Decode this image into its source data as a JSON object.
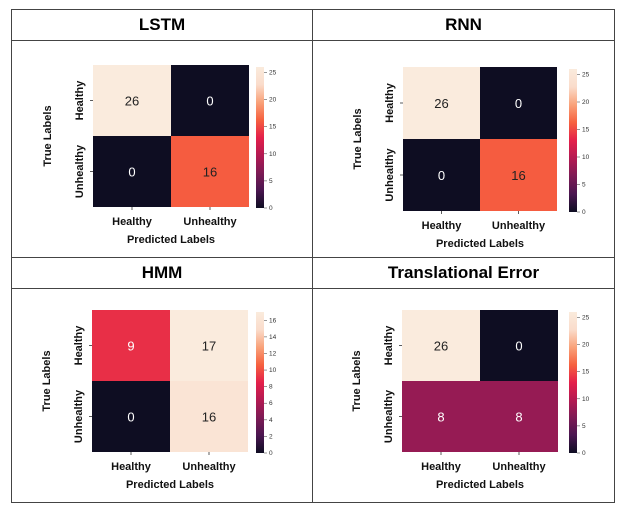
{
  "chart_data": [
    {
      "type": "heatmap",
      "title": "LSTM",
      "xlabel": "Predicted Labels",
      "ylabel": "True Labels",
      "categories": [
        "Healthy",
        "Unhealthy"
      ],
      "values": [
        [
          26,
          0
        ],
        [
          0,
          16
        ]
      ],
      "colorbar": {
        "range": [
          0,
          26
        ],
        "ticks": [
          "0",
          "5",
          "10",
          "15",
          "20",
          "25"
        ]
      }
    },
    {
      "type": "heatmap",
      "title": "RNN",
      "xlabel": "Predicted Labels",
      "ylabel": "True Labels",
      "categories": [
        "Healthy",
        "Unhealthy"
      ],
      "values": [
        [
          26,
          0
        ],
        [
          0,
          16
        ]
      ],
      "colorbar": {
        "range": [
          0,
          26
        ],
        "ticks": [
          "0",
          "5",
          "10",
          "15",
          "20",
          "25"
        ]
      }
    },
    {
      "type": "heatmap",
      "title": "HMM",
      "xlabel": "Predicted Labels",
      "ylabel": "True Labels",
      "categories": [
        "Healthy",
        "Unhealthy"
      ],
      "values": [
        [
          9,
          17
        ],
        [
          0,
          16
        ]
      ],
      "colorbar": {
        "range": [
          0,
          17
        ],
        "ticks": [
          "0",
          "2",
          "4",
          "6",
          "8",
          "10",
          "12",
          "14",
          "16"
        ]
      }
    },
    {
      "type": "heatmap",
      "title": "Translational Error",
      "xlabel": "Predicted Labels",
      "ylabel": "True Labels",
      "categories": [
        "Healthy",
        "Unhealthy"
      ],
      "values": [
        [
          26,
          0
        ],
        [
          8,
          8
        ]
      ],
      "colorbar": {
        "range": [
          0,
          26
        ],
        "ticks": [
          "0",
          "5",
          "10",
          "15",
          "20",
          "25"
        ]
      }
    }
  ],
  "colors": {
    "stops": [
      "#0e0d22",
      "#4a1650",
      "#7d1b55",
      "#b31a52",
      "#e4204a",
      "#f6613f",
      "#f9a27a",
      "#fadccb",
      "#faebdd"
    ],
    "border": "#444444",
    "text_dark": "#222222",
    "text_light": "#ffffff"
  }
}
